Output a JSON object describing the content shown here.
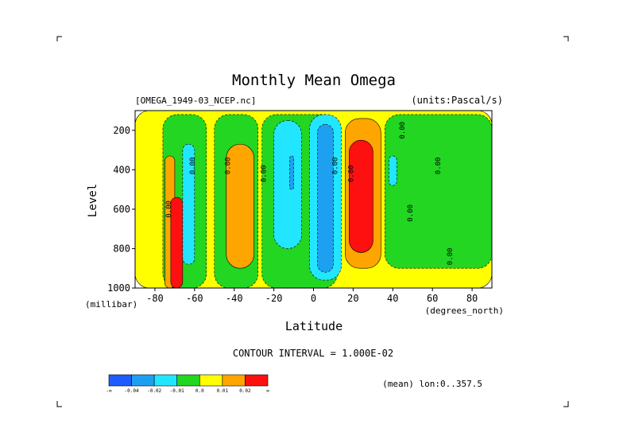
{
  "chart_data": {
    "type": "heatmap",
    "title": "Monthly Mean Omega",
    "subtitle_left": "[OMEGA_1949-03_NCEP.nc]",
    "subtitle_right": "(units:Pascal/s)",
    "xlabel": "Latitude",
    "ylabel": "Level",
    "x_unit": "(degrees_north)",
    "y_unit": "(millibar)",
    "xlim": [
      -90,
      90
    ],
    "ylim": [
      1000,
      100
    ],
    "x_ticks": [
      -80,
      -60,
      -40,
      -20,
      0,
      20,
      40,
      60,
      80
    ],
    "y_ticks": [
      1000,
      800,
      600,
      400,
      200
    ],
    "contour_interval_label": "CONTOUR INTERVAL = 1.000E-02",
    "contour_label": "0.00",
    "footnote": "(mean) lon:0..357.5",
    "levels": [
      -0.04,
      -0.02,
      -0.01,
      0.0,
      0.01,
      0.02
    ],
    "colorbar": {
      "labels": [
        "-∞",
        "-0.04",
        "-0.02",
        "-0.01",
        "0.0",
        "0.01",
        "0.02",
        "∞"
      ],
      "colors": [
        "#1f5cff",
        "#1ea0f0",
        "#22e6ff",
        "#22d622",
        "#ffff00",
        "#ffa500",
        "#ff1010"
      ]
    },
    "regions": [
      {
        "lat": [
          -90,
          90
        ],
        "lev": [
          100,
          1000
        ],
        "level": 0.0
      },
      {
        "lat": [
          -76,
          -54
        ],
        "lev": [
          120,
          1000
        ],
        "level": -0.01
      },
      {
        "lat": [
          -50,
          -28
        ],
        "lev": [
          120,
          1000
        ],
        "level": -0.01
      },
      {
        "lat": [
          -26,
          12
        ],
        "lev": [
          120,
          1000
        ],
        "level": -0.01
      },
      {
        "lat": [
          36,
          90
        ],
        "lev": [
          120,
          900
        ],
        "level": -0.01
      },
      {
        "lat": [
          -75,
          -70
        ],
        "lev": [
          330,
          1000
        ],
        "level": 0.01
      },
      {
        "lat": [
          -72,
          -66
        ],
        "lev": [
          540,
          1000
        ],
        "level": 0.02
      },
      {
        "lat": [
          -66,
          -60
        ],
        "lev": [
          270,
          880
        ],
        "level": -0.02
      },
      {
        "lat": [
          -44,
          -30
        ],
        "lev": [
          270,
          900
        ],
        "level": 0.01
      },
      {
        "lat": [
          -20,
          -6
        ],
        "lev": [
          150,
          800
        ],
        "level": -0.02
      },
      {
        "lat": [
          -12,
          -10
        ],
        "lev": [
          330,
          500
        ],
        "level": -0.04
      },
      {
        "lat": [
          -2,
          14
        ],
        "lev": [
          120,
          960
        ],
        "level": -0.02
      },
      {
        "lat": [
          2,
          10
        ],
        "lev": [
          170,
          920
        ],
        "level": -0.04
      },
      {
        "lat": [
          16,
          34
        ],
        "lev": [
          140,
          900
        ],
        "level": 0.01
      },
      {
        "lat": [
          18,
          30
        ],
        "lev": [
          250,
          820
        ],
        "level": 0.02
      },
      {
        "lat": [
          38,
          42
        ],
        "lev": [
          330,
          480
        ],
        "level": -0.02
      }
    ]
  }
}
